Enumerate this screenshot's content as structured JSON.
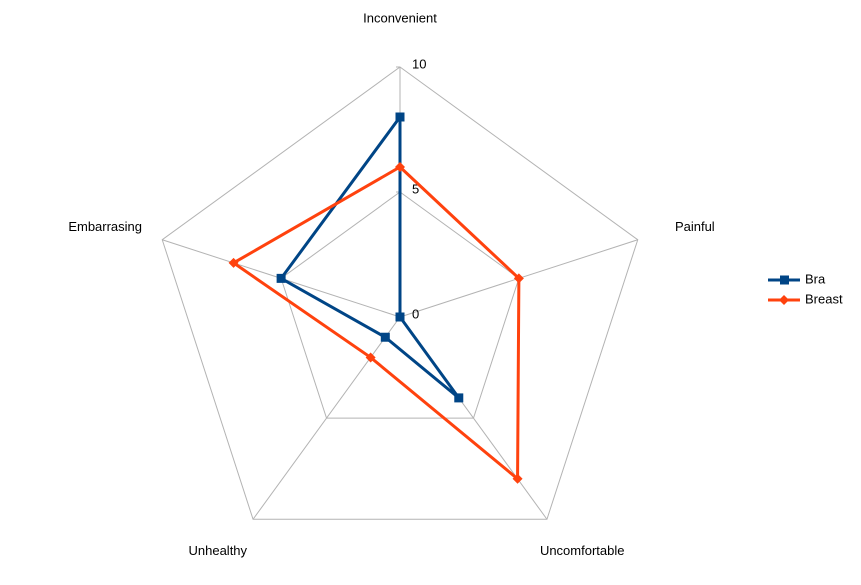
{
  "chart_data": {
    "type": "radar",
    "categories": [
      "Inconvenient",
      "Painful",
      "Uncomfortable",
      "Unhealthy",
      "Embarrasing"
    ],
    "series": [
      {
        "name": "Bra",
        "color": "#004586",
        "marker": "square",
        "values": [
          8,
          0,
          4,
          1,
          5
        ]
      },
      {
        "name": "Breast",
        "color": "#ff420e",
        "marker": "diamond",
        "values": [
          6,
          5,
          8,
          2,
          7
        ]
      }
    ],
    "rlim": [
      0,
      10
    ],
    "rticks": [
      0,
      5,
      10
    ],
    "grid": true,
    "legend": "right"
  }
}
